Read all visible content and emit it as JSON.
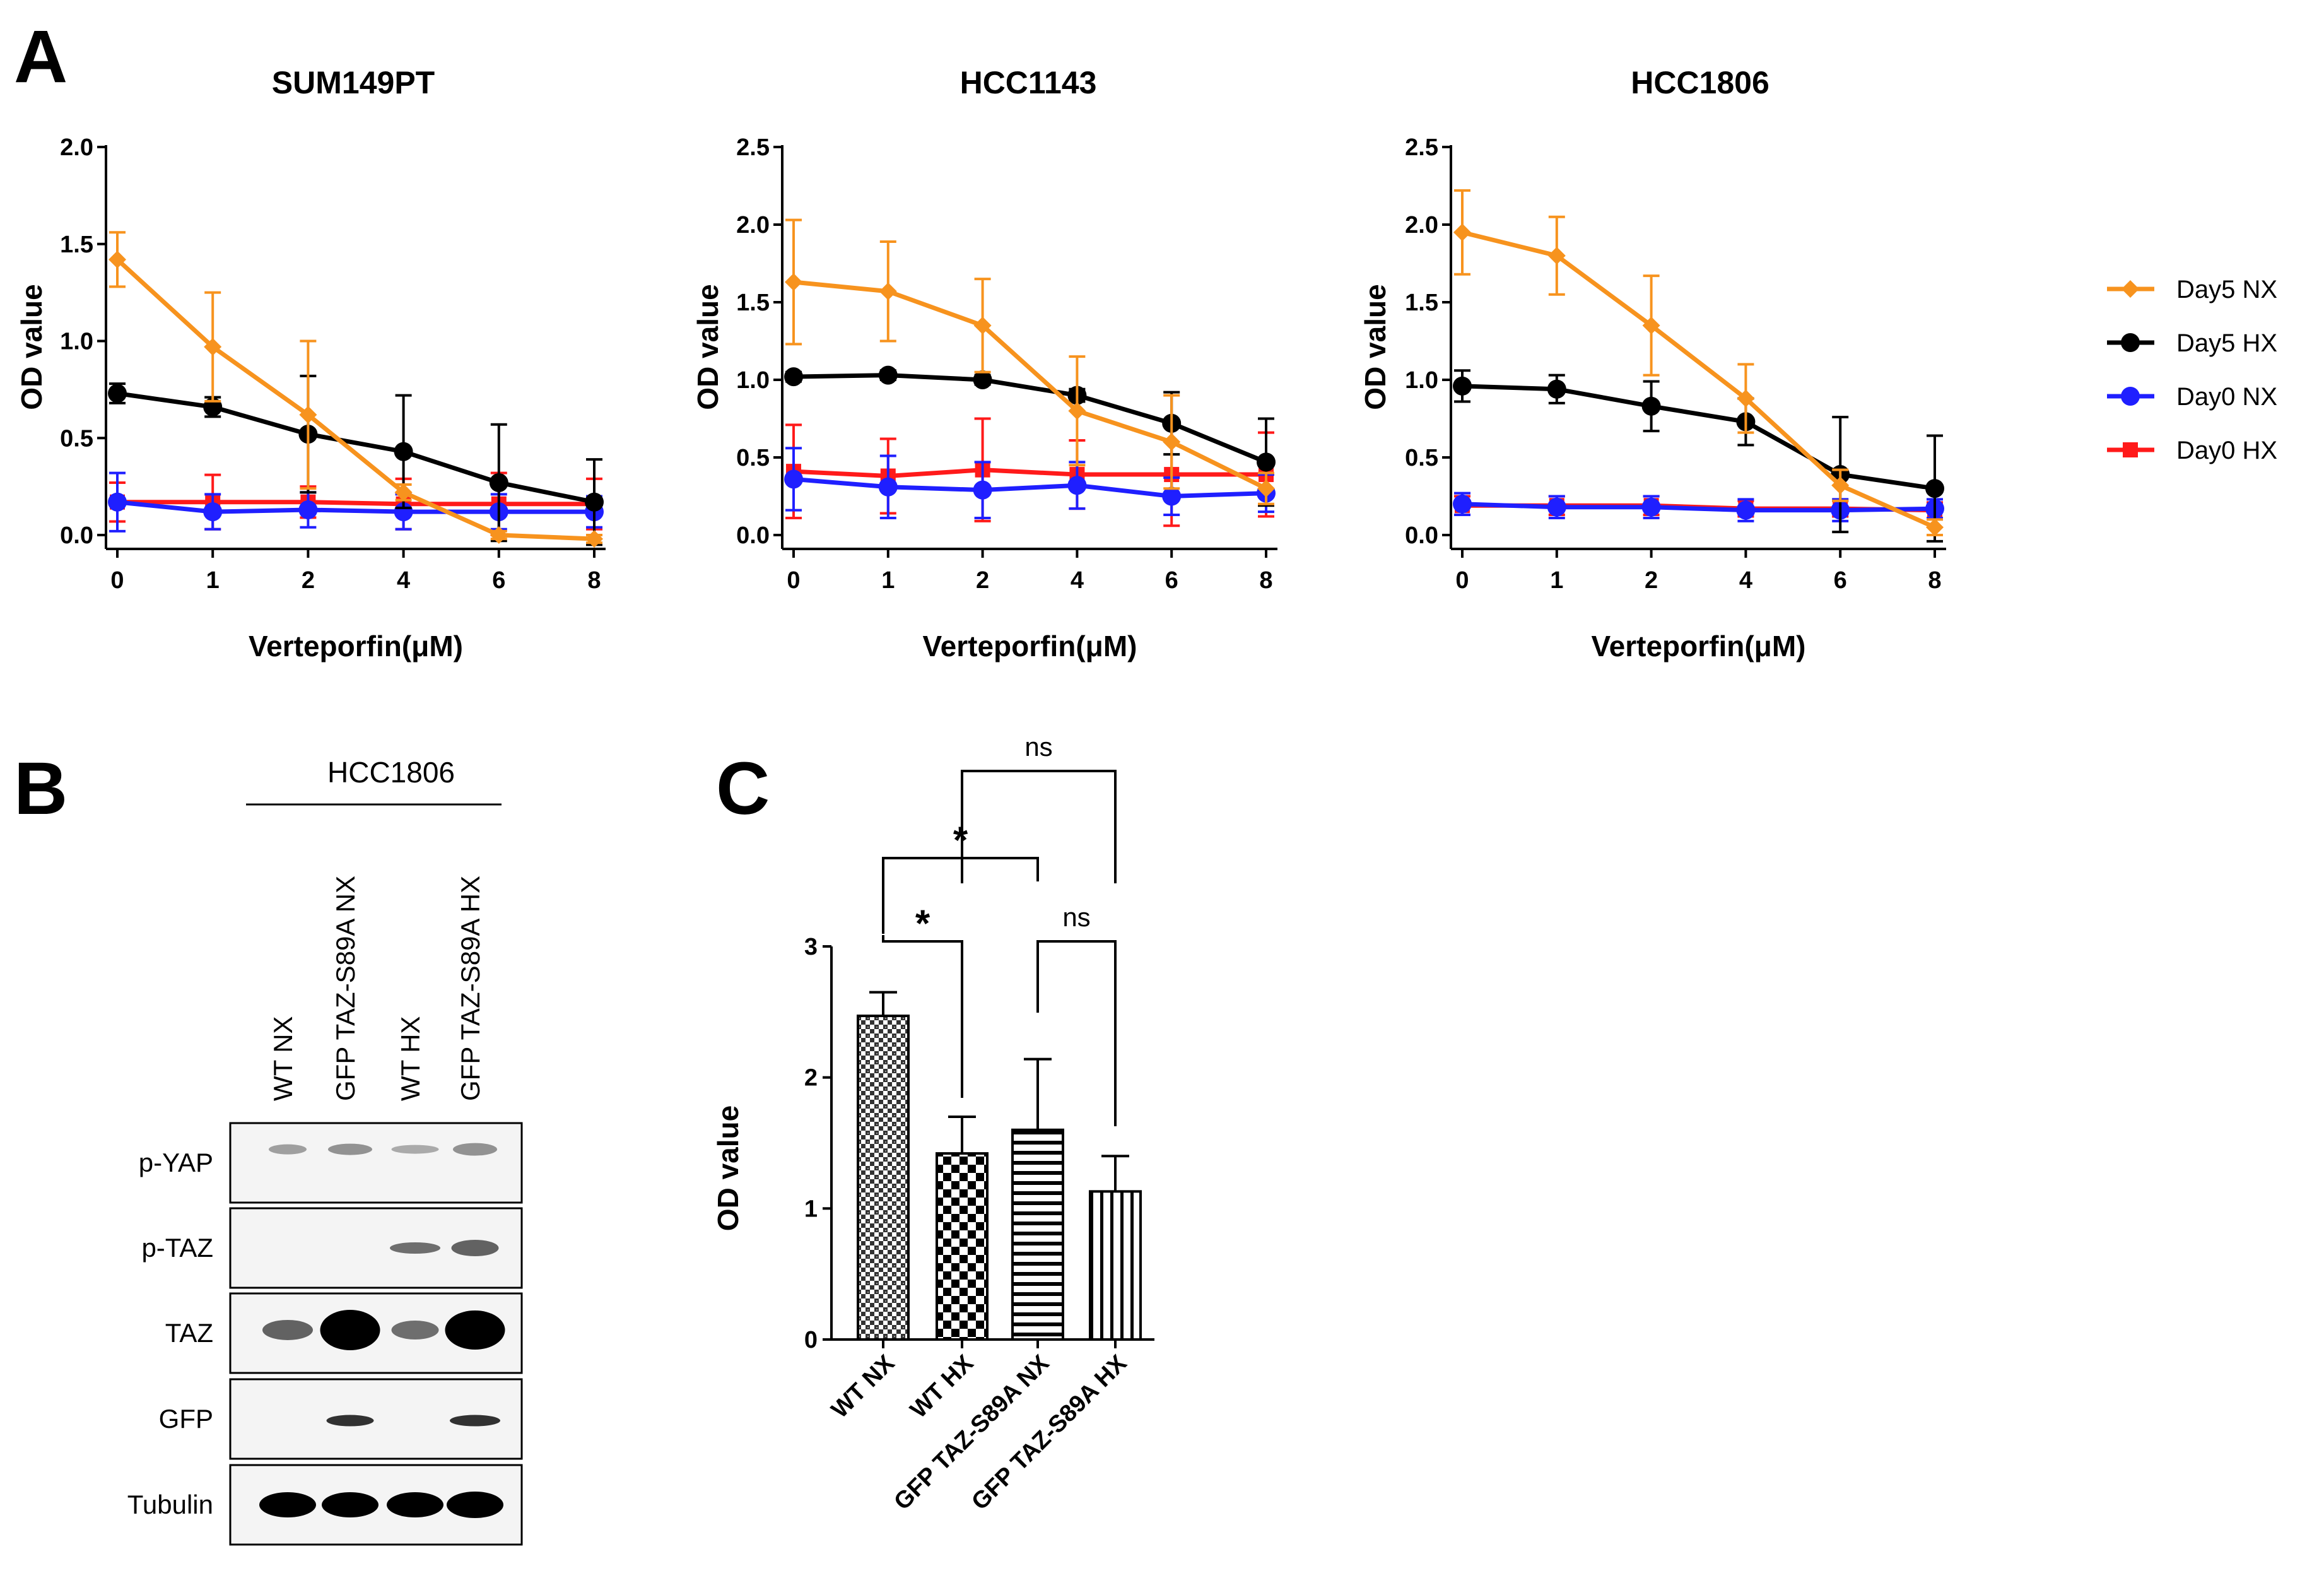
{
  "panel_letters": [
    "A",
    "B",
    "C"
  ],
  "legend": [
    {
      "label": "Day5 NX",
      "color": "#F7931E",
      "marker": "diamond"
    },
    {
      "label": "Day5 HX",
      "color": "#000000",
      "marker": "circle"
    },
    {
      "label": "Day0 NX",
      "color": "#1F1FFF",
      "marker": "circle"
    },
    {
      "label": "Day0 HX",
      "color": "#FF1A1A",
      "marker": "square"
    }
  ],
  "chart_data": [
    {
      "type": "line",
      "title": "SUM149PT",
      "xlabel": "Verteporfin(μM)",
      "ylabel": "OD value",
      "categories": [
        "0",
        "1",
        "2",
        "4",
        "6",
        "8"
      ],
      "ylim": [
        0,
        2.0
      ],
      "yticks": [
        "0.0",
        "0.5",
        "1.0",
        "1.5",
        "2.0"
      ],
      "series": [
        {
          "name": "Day5 NX",
          "values": [
            1.42,
            0.97,
            0.62,
            0.22,
            0.0,
            -0.02
          ],
          "err": [
            0.14,
            0.28,
            0.38,
            0.04,
            0.02,
            0.02
          ]
        },
        {
          "name": "Day5 HX",
          "values": [
            0.73,
            0.66,
            0.52,
            0.43,
            0.27,
            0.17
          ],
          "err": [
            0.05,
            0.05,
            0.3,
            0.29,
            0.3,
            0.22
          ]
        },
        {
          "name": "Day0 NX",
          "values": [
            0.17,
            0.12,
            0.13,
            0.12,
            0.12,
            0.12
          ],
          "err": [
            0.15,
            0.09,
            0.09,
            0.09,
            0.09,
            0.08
          ]
        },
        {
          "name": "Day0 HX",
          "values": [
            0.17,
            0.17,
            0.17,
            0.16,
            0.16,
            0.16
          ],
          "err": [
            0.1,
            0.14,
            0.08,
            0.13,
            0.16,
            0.13
          ]
        }
      ]
    },
    {
      "type": "line",
      "title": "HCC1143",
      "xlabel": "Verteporfin(μM)",
      "ylabel": "OD value",
      "categories": [
        "0",
        "1",
        "2",
        "4",
        "6",
        "8"
      ],
      "ylim": [
        0,
        2.5
      ],
      "yticks": [
        "0.0",
        "0.5",
        "1.0",
        "1.5",
        "2.0",
        "2.5"
      ],
      "series": [
        {
          "name": "Day5 NX",
          "values": [
            1.63,
            1.57,
            1.35,
            0.8,
            0.6,
            0.3
          ],
          "err": [
            0.4,
            0.32,
            0.3,
            0.35,
            0.3,
            0.1
          ]
        },
        {
          "name": "Day5 HX",
          "values": [
            1.02,
            1.03,
            1.0,
            0.9,
            0.72,
            0.47
          ],
          "err": [
            0.03,
            0.03,
            0.03,
            0.04,
            0.2,
            0.28
          ]
        },
        {
          "name": "Day0 NX",
          "values": [
            0.36,
            0.31,
            0.29,
            0.32,
            0.25,
            0.27
          ],
          "err": [
            0.2,
            0.2,
            0.18,
            0.15,
            0.12,
            0.12
          ]
        },
        {
          "name": "Day0 HX",
          "values": [
            0.41,
            0.38,
            0.42,
            0.39,
            0.39,
            0.39
          ],
          "err": [
            0.3,
            0.24,
            0.33,
            0.22,
            0.33,
            0.27
          ]
        }
      ]
    },
    {
      "type": "line",
      "title": "HCC1806",
      "xlabel": "Verteporfin(μM)",
      "ylabel": "OD value",
      "categories": [
        "0",
        "1",
        "2",
        "4",
        "6",
        "8"
      ],
      "ylim": [
        0,
        2.5
      ],
      "yticks": [
        "0.0",
        "0.5",
        "1.0",
        "1.5",
        "2.0",
        "2.5"
      ],
      "series": [
        {
          "name": "Day5 NX",
          "values": [
            1.95,
            1.8,
            1.35,
            0.88,
            0.32,
            0.05
          ],
          "err": [
            0.27,
            0.25,
            0.32,
            0.22,
            0.1,
            0.05
          ]
        },
        {
          "name": "Day5 HX",
          "values": [
            0.96,
            0.94,
            0.83,
            0.73,
            0.39,
            0.3
          ],
          "err": [
            0.1,
            0.09,
            0.16,
            0.15,
            0.37,
            0.34
          ]
        },
        {
          "name": "Day0 NX",
          "values": [
            0.2,
            0.18,
            0.18,
            0.16,
            0.16,
            0.17
          ],
          "err": [
            0.07,
            0.07,
            0.07,
            0.07,
            0.07,
            0.06
          ]
        },
        {
          "name": "Day0 HX",
          "values": [
            0.19,
            0.19,
            0.19,
            0.17,
            0.17,
            0.16
          ],
          "err": [
            0.06,
            0.06,
            0.06,
            0.05,
            0.05,
            0.05
          ]
        }
      ]
    },
    {
      "type": "bar",
      "ylabel": "OD value",
      "categories": [
        "WT NX",
        "WT HX",
        "GFP TAZ-S89A NX",
        "GFP TAZ-S89A HX"
      ],
      "values": [
        2.47,
        1.42,
        1.6,
        1.13
      ],
      "err": [
        0.18,
        0.28,
        0.54,
        0.27
      ],
      "ylim": [
        0,
        3
      ],
      "yticks": [
        "0",
        "1",
        "2",
        "3"
      ],
      "patterns": [
        "dense-check",
        "checker",
        "horizontal",
        "vertical"
      ],
      "significance": [
        {
          "from": 0,
          "to": 1,
          "label": "*"
        },
        {
          "from": 0,
          "to": 2,
          "label": "*"
        },
        {
          "from": 2,
          "to": 3,
          "label": "ns"
        },
        {
          "from": 1,
          "to": 3,
          "label": "ns"
        }
      ]
    }
  ],
  "western_blot": {
    "cell_line": "HCC1806",
    "lanes": [
      "WT NX",
      "GFP TAZ-S89A NX",
      "WT HX",
      "GFP TAZ-S89A HX"
    ],
    "rows": [
      "p-YAP",
      "p-TAZ",
      "TAZ",
      "GFP",
      "Tubulin"
    ]
  }
}
